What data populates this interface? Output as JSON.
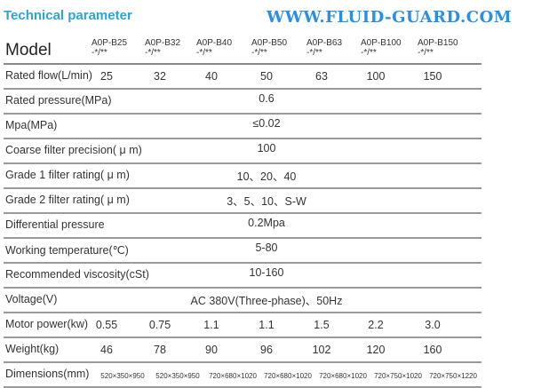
{
  "title": "Technical parameter",
  "header": {
    "label": "Model",
    "models": [
      [
        "A0P-B25",
        "-*/**"
      ],
      [
        "A0P-B32",
        "-*/**"
      ],
      [
        "A0P-B40",
        "-*/**"
      ],
      [
        "A0P-B50",
        "-*/**"
      ],
      [
        "A0P-B63",
        "-*/**"
      ],
      [
        "A0P-B100",
        "-*/**"
      ],
      [
        "A0P-B150",
        "-*/**"
      ]
    ]
  },
  "rows": [
    {
      "label": "Rated flow(L/min)",
      "values": [
        "25",
        "32",
        "40",
        "50",
        "63",
        "100",
        "150"
      ]
    },
    {
      "label": "Rated pressure(MPa)",
      "merged": "0.6"
    },
    {
      "label": "Mpa(MPa)",
      "merged": "≤0.02"
    },
    {
      "label": "Coarse filter precision( μ m)",
      "merged": "100"
    },
    {
      "label": "Grade 1 filter rating( μ m)",
      "merged": "10、20、40"
    },
    {
      "label": "Grade 2 filter rating( μ m)",
      "merged": "3、5、10、S-W"
    },
    {
      "label": "Differential pressure",
      "merged": "0.2Mpa"
    },
    {
      "label": "Working temperature(℃)",
      "merged": "5-80"
    },
    {
      "label": "Recommended viscosity(cSt)",
      "merged": "10-160"
    },
    {
      "label": "Voltage(V)",
      "merged": "AC 380V(Three-phase)、50Hz"
    },
    {
      "label": "Motor power(kw)",
      "values": [
        "0.55",
        "0.75",
        "1.1",
        "1.1",
        "1.5",
        "2.2",
        "3.0"
      ]
    },
    {
      "label": "Weight(kg)",
      "values": [
        "46",
        "78",
        "90",
        "96",
        "102",
        "120",
        "160"
      ]
    },
    {
      "label": "Dimensions(mm)",
      "small": true,
      "values": [
        "520×350×950",
        "520×350×950",
        "720×680×1020",
        "720×680×1020",
        "720×680×1020",
        "720×750×1020",
        "720×750×1220"
      ]
    }
  ],
  "watermark": "WWW.FLUID-GUARD.COM",
  "colors": {
    "title": "#2ea3d8",
    "watermark": "#2a8fe3"
  }
}
